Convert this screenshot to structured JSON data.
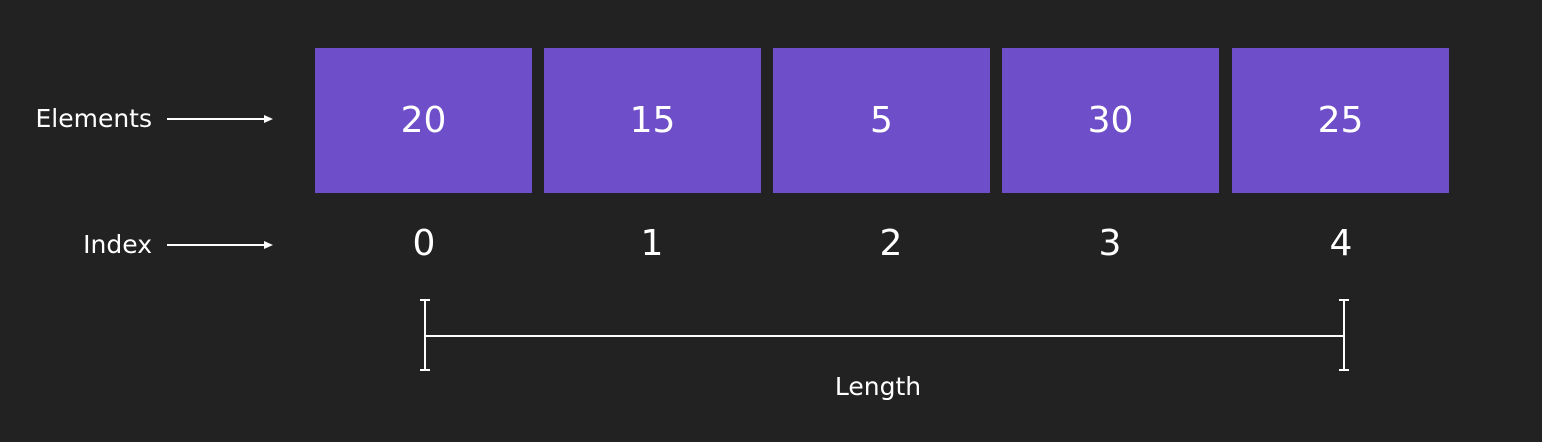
{
  "labels": {
    "elements": "Elements",
    "index": "Index",
    "length": "Length"
  },
  "array": {
    "elements": [
      "20",
      "15",
      "5",
      "30",
      "25"
    ],
    "indices": [
      "0",
      "1",
      "2",
      "3",
      "4"
    ]
  },
  "colors": {
    "background": "#222222",
    "cell": "#6f4fc9",
    "foreground": "#ffffff"
  }
}
